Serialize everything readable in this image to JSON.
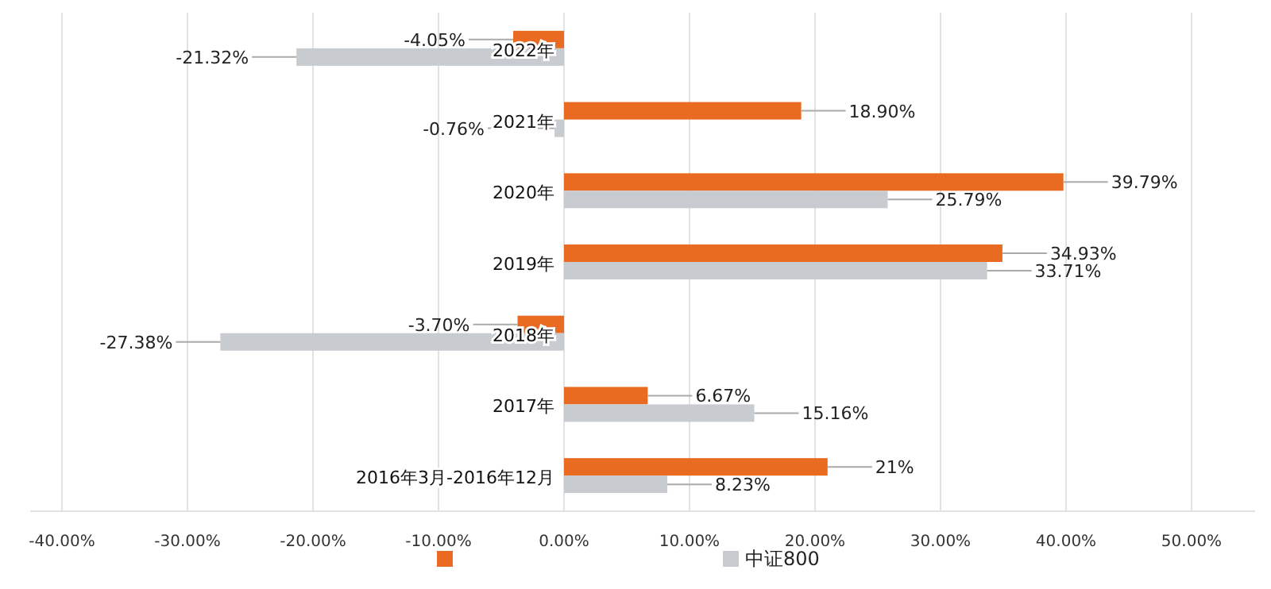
{
  "chart_data": {
    "type": "bar",
    "orientation": "horizontal",
    "categories": [
      "2022年",
      "2021年",
      "2020年",
      "2019年",
      "2018年",
      "2017年",
      "2016年3月-2016年12月"
    ],
    "series": [
      {
        "color": "#e86b21",
        "values": [
          -4.05,
          18.9,
          39.79,
          34.93,
          -3.7,
          6.67,
          21
        ],
        "value_labels": [
          "-4.05%",
          "18.90%",
          "39.79%",
          "34.93%",
          "-3.70%",
          "6.67%",
          "21%"
        ]
      },
      {
        "name": "中证800",
        "color": "#c8cbd0",
        "values": [
          -21.32,
          -0.76,
          25.79,
          33.71,
          -27.38,
          15.16,
          8.23
        ],
        "value_labels": [
          "-21.32%",
          "-0.76%",
          "25.79%",
          "33.71%",
          "-27.38%",
          "15.16%",
          "8.23%"
        ]
      }
    ],
    "xlim": [
      -40,
      50
    ],
    "xticks": [
      {
        "value": -40,
        "label": "-40.00%"
      },
      {
        "value": -30,
        "label": "-30.00%"
      },
      {
        "value": -20,
        "label": "-20.00%"
      },
      {
        "value": -10,
        "label": "-10.00%"
      },
      {
        "value": 0,
        "label": "0.00%"
      },
      {
        "value": 10,
        "label": "10.00%"
      },
      {
        "value": 20,
        "label": "20.00%"
      },
      {
        "value": 30,
        "label": "30.00%"
      },
      {
        "value": 40,
        "label": "40.00%"
      },
      {
        "value": 50,
        "label": "50.00%"
      }
    ],
    "grid": "x",
    "legend": "bottom"
  }
}
